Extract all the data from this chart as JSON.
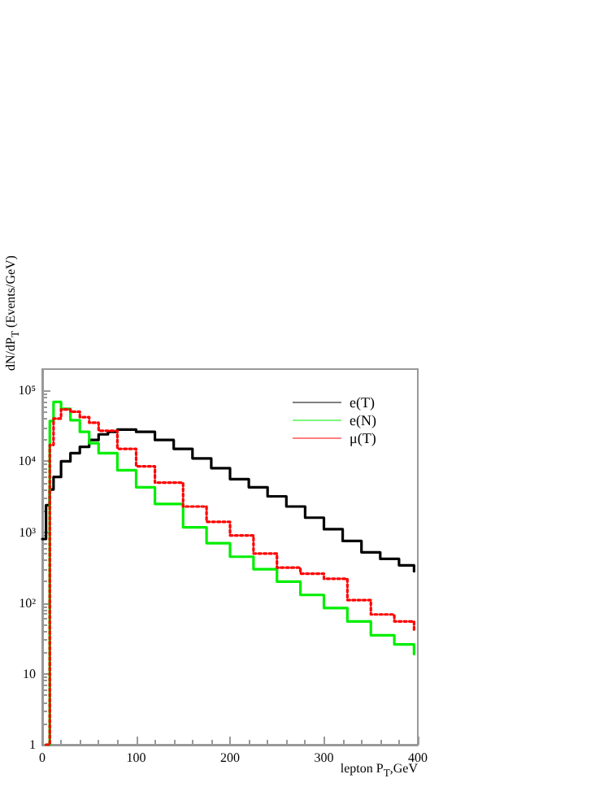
{
  "chart_data": {
    "type": "step",
    "xlabel": "lepton P$_{T}$,GeV",
    "ylabel": "dN/dP$_{T}$ (Events/GeV)",
    "log": "y",
    "xlim": [
      0,
      400
    ],
    "ylim": [
      1,
      200000
    ],
    "xticks": [
      0,
      100,
      200,
      300,
      400
    ],
    "yticks": [
      1,
      10,
      {
        "value": 100,
        "label": "10²"
      },
      {
        "value": 1000,
        "label": "10³"
      },
      {
        "value": 10000,
        "label": "10⁴"
      },
      {
        "value": 100000,
        "label": "10⁵"
      }
    ],
    "grid": false,
    "legend": "top right",
    "marker": "none",
    "series": [
      {
        "name": "e(T)",
        "color": "#000000",
        "line_style": "solid",
        "x": [
          0,
          4,
          8,
          12,
          20,
          30,
          40,
          50,
          60,
          70,
          80,
          90,
          100,
          120,
          140,
          160,
          180,
          200,
          220,
          240,
          260,
          280,
          300,
          320,
          340,
          360,
          380,
          396
        ],
        "values": [
          800,
          2400,
          4000,
          6000,
          10000,
          13000,
          16000,
          20000,
          24000,
          26000,
          28000,
          28000,
          26000,
          20000,
          15000,
          11000,
          8000,
          5600,
          4300,
          3200,
          2300,
          1600,
          1100,
          750,
          520,
          420,
          340,
          280
        ]
      },
      {
        "name": "e(N)",
        "color": "#00ee00",
        "line_style": "solid",
        "x": [
          4,
          8,
          12,
          20,
          30,
          40,
          50,
          60,
          80,
          100,
          120,
          150,
          175,
          200,
          225,
          250,
          275,
          300,
          325,
          350,
          375,
          396
        ],
        "values": [
          1,
          37000,
          69000,
          55000,
          38000,
          26000,
          18000,
          13000,
          7500,
          4300,
          2500,
          1170,
          700,
          450,
          300,
          200,
          130,
          85,
          55,
          35,
          26,
          19
        ]
      },
      {
        "name": "μ(T)",
        "color": "#ff0000",
        "line_style": "dotted",
        "x": [
          4,
          8,
          12,
          20,
          30,
          40,
          50,
          60,
          80,
          100,
          120,
          150,
          175,
          200,
          225,
          250,
          275,
          300,
          325,
          350,
          375,
          396
        ],
        "values": [
          1,
          17000,
          40000,
          54000,
          50000,
          42000,
          35000,
          27000,
          15000,
          8500,
          5000,
          2300,
          1400,
          900,
          500,
          316,
          260,
          220,
          110,
          69,
          55,
          41
        ]
      }
    ]
  }
}
